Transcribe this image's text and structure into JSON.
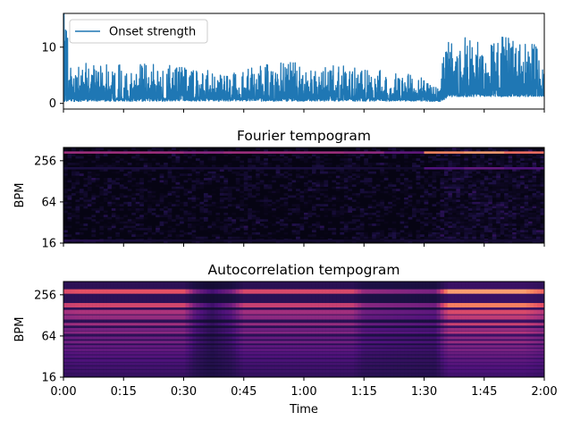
{
  "chart_data": [
    {
      "type": "line",
      "title": "",
      "xlabel": "",
      "ylabel": "",
      "xlim": [
        0,
        120
      ],
      "ylim": [
        -1,
        16
      ],
      "yticks": [
        0,
        10
      ],
      "series": [
        {
          "name": "Onset strength",
          "color": "#1f77b4",
          "profile": {
            "x": [
              0,
              2,
              10,
              20,
              30,
              40,
              50,
              60,
              70,
              80,
              90,
              93,
              94.3,
              96,
              100,
              105,
              110,
              115,
              120
            ],
            "baseline": [
              0.3,
              0.3,
              0.4,
              0.4,
              0.4,
              0.4,
              0.4,
              0.4,
              0.4,
              0.4,
              0.4,
              0.3,
              0.3,
              1.2,
              1.2,
              1.2,
              1.2,
              1.2,
              1.2
            ],
            "envelope": [
              16,
              7,
              6.5,
              6.8,
              6.2,
              5.0,
              6.8,
              7.0,
              6.3,
              5.5,
              4.5,
              2.5,
              7.0,
              10.0,
              10.5,
              10.0,
              11.0,
              9.5,
              9.0
            ]
          }
        }
      ]
    },
    {
      "type": "heatmap",
      "title": "Fourier tempogram",
      "xlabel": "",
      "ylabel": "BPM",
      "xlim": [
        0,
        120
      ],
      "yscale": "log2",
      "ylim": [
        16,
        400
      ],
      "yticks": [
        16,
        64,
        256
      ],
      "colormap": "magma",
      "bands": [
        {
          "bpm": 340,
          "intensity": [
            0.45,
            0.45,
            0.45,
            0.4,
            0.45,
            0.45,
            0.45,
            0.42,
            0.3,
            0.75,
            0.8,
            0.7
          ]
        },
        {
          "bpm": 200,
          "intensity": [
            0.12,
            0.12,
            0.12,
            0.1,
            0.12,
            0.12,
            0.12,
            0.1,
            0.08,
            0.25,
            0.3,
            0.25
          ]
        },
        {
          "bpm": 16,
          "intensity": [
            0.15,
            0.12,
            0.1,
            0.08,
            0.1,
            0.1,
            0.1,
            0.08,
            0.1,
            0.12,
            0.1,
            0.1
          ]
        }
      ]
    },
    {
      "type": "heatmap",
      "title": "Autocorrelation tempogram",
      "xlabel": "Time",
      "ylabel": "BPM",
      "xlim": [
        0,
        120
      ],
      "yscale": "log2",
      "ylim": [
        16,
        400
      ],
      "yticks": [
        16,
        64,
        256
      ],
      "xtick_values": [
        0,
        15,
        30,
        45,
        60,
        75,
        90,
        105,
        120
      ],
      "xticks": [
        "0:00",
        "0:15",
        "0:30",
        "0:45",
        "1:00",
        "1:15",
        "1:30",
        "1:45",
        "2:00"
      ],
      "colormap": "magma",
      "activity": {
        "time": [
          0,
          4,
          30,
          33,
          37,
          42,
          45,
          72,
          75,
          93,
          94.5,
          96,
          100,
          115,
          120
        ],
        "level": [
          0.7,
          0.75,
          0.75,
          0.35,
          0.15,
          0.35,
          0.7,
          0.7,
          0.45,
          0.35,
          0.7,
          1.0,
          1.0,
          1.0,
          0.8
        ]
      },
      "bands": [
        {
          "bpm": 286,
          "strength": 1.0
        },
        {
          "bpm": 180,
          "strength": 0.9
        },
        {
          "bpm": 143,
          "strength": 0.7
        },
        {
          "bpm": 120,
          "strength": 0.6
        },
        {
          "bpm": 95,
          "strength": 0.65
        },
        {
          "bpm": 80,
          "strength": 0.45
        },
        {
          "bpm": 72,
          "strength": 0.55
        },
        {
          "bpm": 60,
          "strength": 0.4
        },
        {
          "bpm": 52,
          "strength": 0.45
        },
        {
          "bpm": 45,
          "strength": 0.35
        },
        {
          "bpm": 40,
          "strength": 0.35
        },
        {
          "bpm": 36,
          "strength": 0.3
        },
        {
          "bpm": 32,
          "strength": 0.28
        },
        {
          "bpm": 28,
          "strength": 0.25
        },
        {
          "bpm": 25,
          "strength": 0.22
        },
        {
          "bpm": 22,
          "strength": 0.2
        },
        {
          "bpm": 19.5,
          "strength": 0.18
        },
        {
          "bpm": 17.5,
          "strength": 0.15
        }
      ]
    }
  ]
}
